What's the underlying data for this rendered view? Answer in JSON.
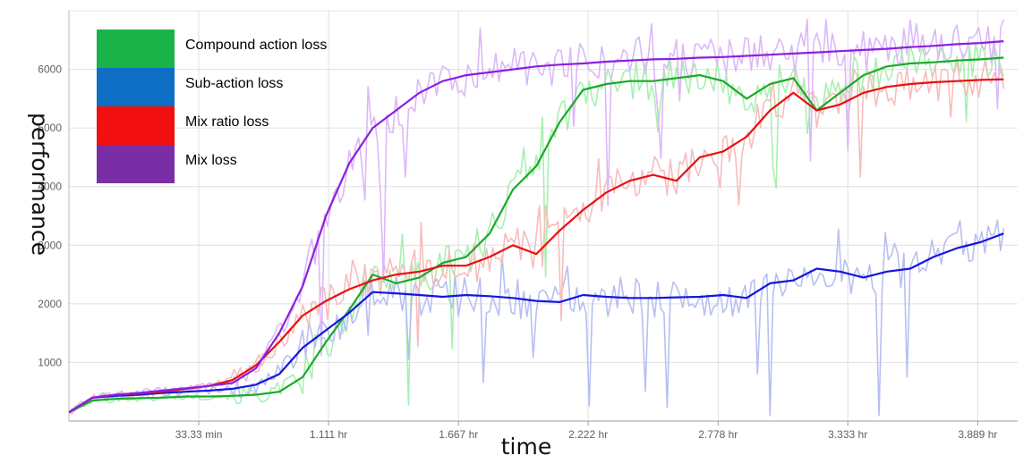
{
  "chart_data": {
    "type": "line",
    "title": "",
    "xlabel": "time",
    "ylabel": "performance",
    "xlim": [
      0,
      4.06
    ],
    "ylim": [
      0,
      7000
    ],
    "grid": true,
    "legend_placement": "top-left",
    "x_ticks": [
      {
        "value": 0.5556,
        "label": "33.33 min"
      },
      {
        "value": 1.111,
        "label": "1.111 hr"
      },
      {
        "value": 1.667,
        "label": "1.667 hr"
      },
      {
        "value": 2.222,
        "label": "2.222 hr"
      },
      {
        "value": 2.778,
        "label": "2.778 hr"
      },
      {
        "value": 3.333,
        "label": "3.333 hr"
      },
      {
        "value": 3.889,
        "label": "3.889 hr"
      }
    ],
    "y_ticks": [
      {
        "value": 1000,
        "label": "1000"
      },
      {
        "value": 2000,
        "label": "2000"
      },
      {
        "value": 3000,
        "label": "3000"
      },
      {
        "value": 4000,
        "label": "4000"
      },
      {
        "value": 5000,
        "label": "5000"
      },
      {
        "value": 6000,
        "label": "6000"
      }
    ],
    "series": [
      {
        "name": "Compound action loss",
        "color": "#1aaa2a",
        "raw_color": "#a8f0b0",
        "x": [
          0,
          0.1,
          0.2,
          0.3,
          0.4,
          0.5,
          0.6,
          0.7,
          0.8,
          0.9,
          1.0,
          1.1,
          1.2,
          1.3,
          1.4,
          1.5,
          1.6,
          1.7,
          1.8,
          1.9,
          2.0,
          2.1,
          2.2,
          2.3,
          2.4,
          2.5,
          2.6,
          2.7,
          2.8,
          2.9,
          3.0,
          3.1,
          3.2,
          3.3,
          3.4,
          3.5,
          3.6,
          3.7,
          3.8,
          3.9,
          4.0
        ],
        "values": [
          150,
          350,
          380,
          390,
          400,
          420,
          420,
          430,
          450,
          500,
          750,
          1350,
          1900,
          2500,
          2350,
          2450,
          2700,
          2800,
          3200,
          3950,
          4350,
          5100,
          5650,
          5750,
          5800,
          5800,
          5850,
          5900,
          5800,
          5500,
          5750,
          5850,
          5300,
          5600,
          5900,
          6050,
          6100,
          6120,
          6150,
          6170,
          6200
        ]
      },
      {
        "name": "Sub-action loss",
        "color": "#1515e0",
        "raw_color": "#b7bff2",
        "x": [
          0,
          0.1,
          0.2,
          0.3,
          0.4,
          0.5,
          0.6,
          0.7,
          0.8,
          0.9,
          1.0,
          1.1,
          1.2,
          1.3,
          1.4,
          1.5,
          1.6,
          1.7,
          1.8,
          1.9,
          2.0,
          2.1,
          2.2,
          2.3,
          2.4,
          2.5,
          2.6,
          2.7,
          2.8,
          2.9,
          3.0,
          3.1,
          3.2,
          3.3,
          3.4,
          3.5,
          3.6,
          3.7,
          3.8,
          3.9,
          4.0
        ],
        "values": [
          150,
          400,
          430,
          450,
          480,
          500,
          520,
          550,
          620,
          800,
          1250,
          1550,
          1850,
          2200,
          2180,
          2150,
          2120,
          2150,
          2130,
          2100,
          2050,
          2030,
          2150,
          2120,
          2100,
          2100,
          2110,
          2120,
          2150,
          2100,
          2350,
          2400,
          2600,
          2550,
          2450,
          2550,
          2600,
          2800,
          2950,
          3050,
          3200
        ]
      },
      {
        "name": "Mix ratio loss",
        "color": "#e81010",
        "raw_color": "#f8bcbc",
        "x": [
          0,
          0.1,
          0.2,
          0.3,
          0.4,
          0.5,
          0.6,
          0.7,
          0.8,
          0.9,
          1.0,
          1.1,
          1.2,
          1.3,
          1.4,
          1.5,
          1.6,
          1.7,
          1.8,
          1.9,
          2.0,
          2.1,
          2.2,
          2.3,
          2.4,
          2.5,
          2.6,
          2.7,
          2.8,
          2.9,
          3.0,
          3.1,
          3.2,
          3.3,
          3.4,
          3.5,
          3.6,
          3.7,
          3.8,
          3.9,
          4.0
        ],
        "values": [
          150,
          400,
          450,
          470,
          500,
          550,
          600,
          700,
          950,
          1350,
          1800,
          2050,
          2250,
          2400,
          2500,
          2550,
          2650,
          2650,
          2800,
          3000,
          2850,
          3250,
          3600,
          3900,
          4100,
          4200,
          4100,
          4500,
          4600,
          4850,
          5300,
          5600,
          5300,
          5400,
          5600,
          5700,
          5750,
          5780,
          5800,
          5820,
          5830
        ]
      },
      {
        "name": "Mix loss",
        "color": "#8b1fe0",
        "raw_color": "#dcb8f8",
        "x": [
          0,
          0.1,
          0.2,
          0.3,
          0.4,
          0.5,
          0.6,
          0.7,
          0.8,
          0.9,
          1.0,
          1.1,
          1.2,
          1.3,
          1.4,
          1.5,
          1.6,
          1.7,
          1.8,
          1.9,
          2.0,
          2.1,
          2.2,
          2.3,
          2.4,
          2.5,
          2.6,
          2.7,
          2.8,
          2.9,
          3.0,
          3.1,
          3.2,
          3.3,
          3.4,
          3.5,
          3.6,
          3.7,
          3.8,
          3.9,
          4.0
        ],
        "values": [
          150,
          400,
          450,
          480,
          520,
          560,
          600,
          650,
          900,
          1500,
          2300,
          3500,
          4400,
          5000,
          5300,
          5600,
          5800,
          5900,
          5950,
          6000,
          6050,
          6080,
          6100,
          6130,
          6150,
          6170,
          6180,
          6200,
          6210,
          6230,
          6250,
          6270,
          6290,
          6310,
          6330,
          6350,
          6380,
          6400,
          6430,
          6450,
          6480
        ]
      }
    ]
  }
}
